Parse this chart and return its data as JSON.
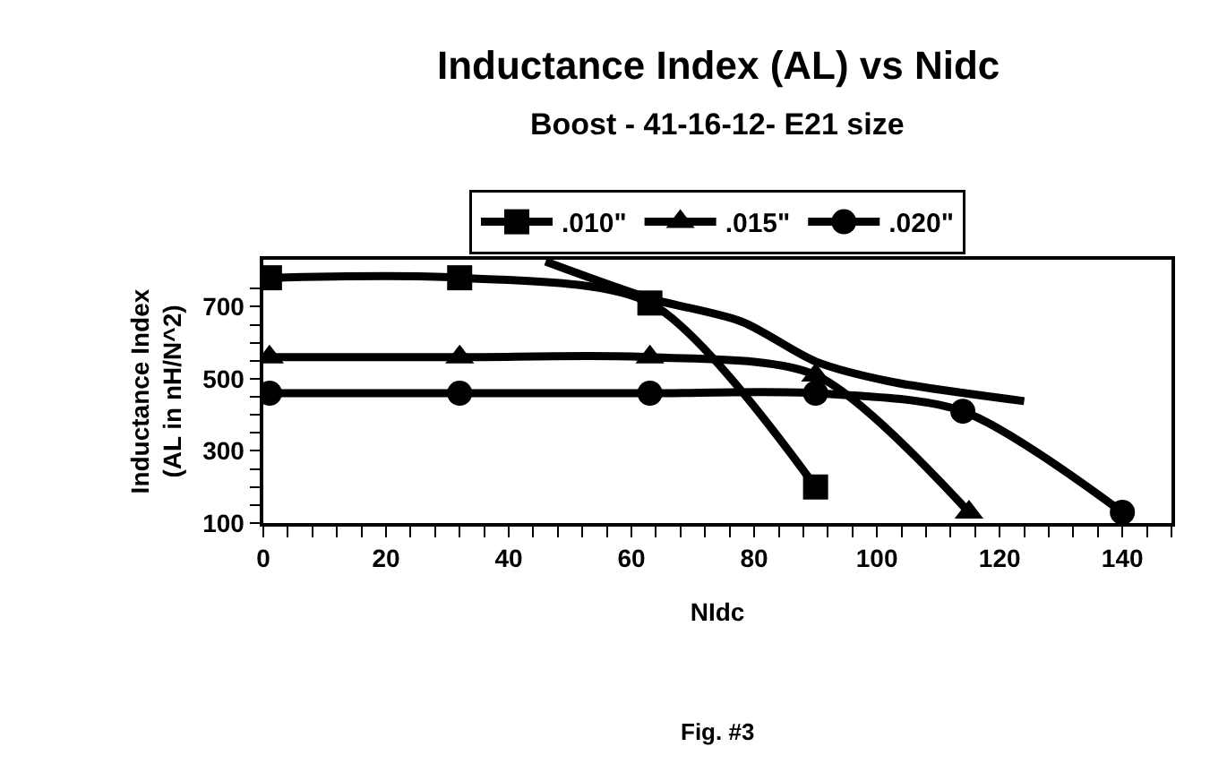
{
  "chart_data": {
    "type": "line",
    "title": "Inductance Index (AL) vs Nidc",
    "subtitle": "Boost - 41-16-12- E21 size",
    "xlabel": "NIdc",
    "ylabel": "Inductance Index (AL in nH/N^2)",
    "annotations": [
      "Fig. #3"
    ],
    "series": [
      {
        "name": ".010\"",
        "color": "#000000",
        "marker": "square",
        "x": [
          1,
          32,
          63,
          90
        ],
        "values": [
          780,
          780,
          710,
          200
        ]
      },
      {
        "name": ".015\"",
        "color": "#000000",
        "marker": "triangle",
        "x": [
          1,
          32,
          63,
          90,
          115
        ],
        "values": [
          560,
          560,
          560,
          510,
          130
        ]
      },
      {
        "name": ".020\"",
        "color": "#000000",
        "marker": "circle",
        "x": [
          1,
          32,
          63,
          90,
          114,
          140
        ],
        "values": [
          460,
          460,
          460,
          460,
          410,
          130
        ]
      },
      {
        "color": "#000000",
        "marker": "none",
        "x": [
          46,
          63,
          78,
          90,
          102,
          124
        ],
        "values": [
          825,
          723,
          658,
          548,
          493,
          438
        ]
      }
    ],
    "xlim": [
      0,
      148
    ],
    "xticks": [
      0,
      {
        "value": 4,
        "label": null
      },
      {
        "value": 8,
        "label": null
      },
      {
        "value": 12,
        "label": null
      },
      {
        "value": 16,
        "label": null
      },
      20,
      {
        "value": 24,
        "label": null
      },
      {
        "value": 28,
        "label": null
      },
      {
        "value": 32,
        "label": null
      },
      {
        "value": 36,
        "label": null
      },
      40,
      {
        "value": 44,
        "label": null
      },
      {
        "value": 48,
        "label": null
      },
      {
        "value": 52,
        "label": null
      },
      {
        "value": 56,
        "label": null
      },
      60,
      {
        "value": 64,
        "label": null
      },
      {
        "value": 68,
        "label": null
      },
      {
        "value": 72,
        "label": null
      },
      {
        "value": 76,
        "label": null
      },
      80,
      {
        "value": 84,
        "label": null
      },
      {
        "value": 88,
        "label": null
      },
      {
        "value": 92,
        "label": null
      },
      {
        "value": 96,
        "label": null
      },
      100,
      {
        "value": 104,
        "label": null
      },
      {
        "value": 108,
        "label": null
      },
      {
        "value": 112,
        "label": null
      },
      {
        "value": 116,
        "label": null
      },
      120,
      {
        "value": 124,
        "label": null
      },
      {
        "value": 128,
        "label": null
      },
      {
        "value": 132,
        "label": null
      },
      {
        "value": 136,
        "label": null
      },
      140,
      {
        "value": 144,
        "label": null
      },
      {
        "value": 148,
        "label": null
      }
    ],
    "ylim": [
      100,
      830
    ],
    "yticks": [
      100,
      {
        "value": 150,
        "label": null
      },
      {
        "value": 200,
        "label": null
      },
      {
        "value": 250,
        "label": null
      },
      300,
      {
        "value": 350,
        "label": null
      },
      {
        "value": 400,
        "label": null
      },
      {
        "value": 450,
        "label": null
      },
      500,
      {
        "value": 550,
        "label": null
      },
      {
        "value": 600,
        "label": null
      },
      {
        "value": 650,
        "label": null
      },
      700,
      {
        "value": 750,
        "label": null
      }
    ],
    "legend": "top",
    "line_style": "solid"
  }
}
